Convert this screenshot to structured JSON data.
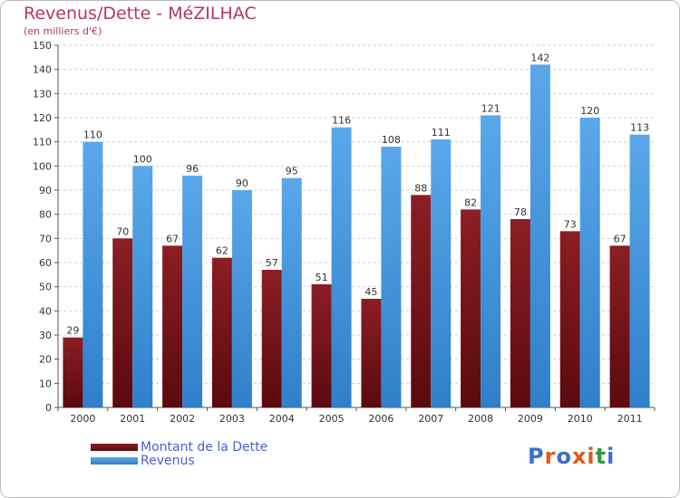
{
  "title": "Revenus/Dette - MéZILHAC",
  "subtitle": "(en milliers d'€)",
  "logo": {
    "text": "Proxiti",
    "letter_colors": [
      "#3a6fcf",
      "#e05a1a",
      "#3a6fcf",
      "#e05a1a",
      "#e05a1a",
      "#2e9a3a",
      "#3a6fcf"
    ]
  },
  "chart_data": {
    "type": "bar",
    "categories": [
      "2000",
      "2001",
      "2002",
      "2003",
      "2004",
      "2005",
      "2006",
      "2007",
      "2008",
      "2009",
      "2010",
      "2011"
    ],
    "series": [
      {
        "name": "Montant de la Dette",
        "values": [
          29,
          70,
          67,
          62,
          57,
          51,
          45,
          88,
          82,
          78,
          73,
          67
        ],
        "color": "#8b1e24",
        "color_dark": "#5a0a0e"
      },
      {
        "name": "Revenus",
        "values": [
          110,
          100,
          96,
          90,
          95,
          116,
          108,
          111,
          121,
          142,
          120,
          113
        ],
        "color": "#5aa8ea",
        "color_dark": "#2f7fca"
      }
    ],
    "ylim": [
      0,
      150
    ],
    "yticks": [
      0,
      10,
      20,
      30,
      40,
      50,
      60,
      70,
      80,
      90,
      100,
      110,
      120,
      130,
      140,
      150
    ],
    "grid": true,
    "legend": "bottom-left",
    "xlabel": "",
    "ylabel": ""
  }
}
